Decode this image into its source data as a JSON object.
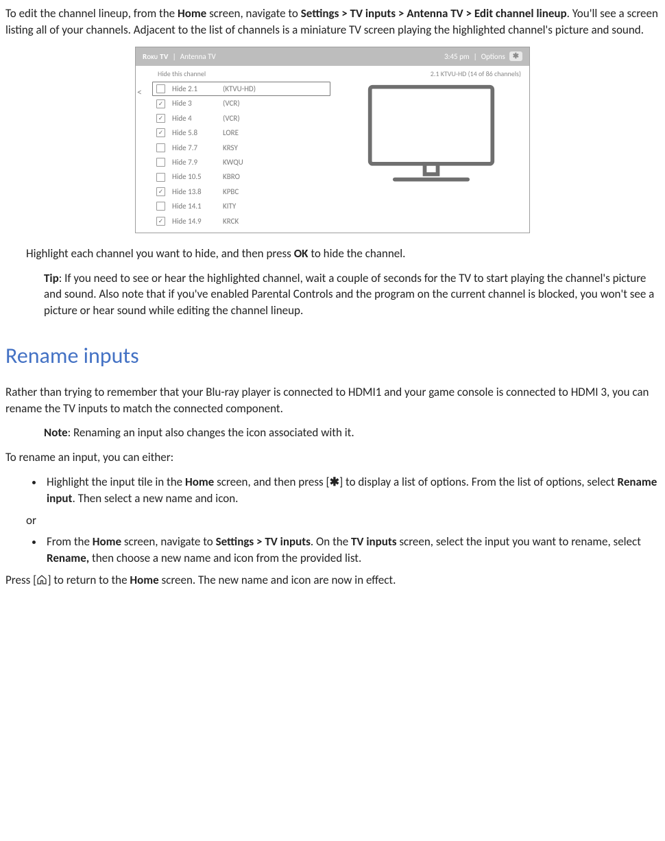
{
  "intro": {
    "pre": "To edit the channel lineup, from the ",
    "home": "Home",
    "mid1": " screen, navigate to ",
    "path": "Settings > TV inputs > Antenna TV > Edit channel lineup",
    "tail": ". You'll see a screen listing all of your channels. Adjacent to the list of channels is a miniature TV screen playing the highlighted channel's picture and sound."
  },
  "mock": {
    "logo": "Roku TV",
    "separator": "|",
    "breadcrumb": "Antenna TV",
    "time": "3:45 pm",
    "options": "Options",
    "star": "✱",
    "sub_left": "Hide this channel",
    "sub_right": "2.1 KTVU-HD (14 of 86 channels)",
    "rows": [
      {
        "checked": false,
        "hide": "Hide 2.1",
        "name": "(KTVU-HD)",
        "selected": true
      },
      {
        "checked": true,
        "hide": "Hide 3",
        "name": "(VCR)"
      },
      {
        "checked": true,
        "hide": "Hide 4",
        "name": "(VCR)"
      },
      {
        "checked": true,
        "hide": "Hide 5.8",
        "name": "LORE"
      },
      {
        "checked": false,
        "hide": "Hide 7.7",
        "name": "KRSY"
      },
      {
        "checked": false,
        "hide": "Hide 7.9",
        "name": "KWQU"
      },
      {
        "checked": false,
        "hide": "Hide 10.5",
        "name": "KBRO"
      },
      {
        "checked": true,
        "hide": "Hide 13.8",
        "name": "KPBC"
      },
      {
        "checked": false,
        "hide": "Hide 14.1",
        "name": "KITY"
      },
      {
        "checked": true,
        "hide": "Hide 14.9",
        "name": "KRCK"
      }
    ]
  },
  "highlight_line": {
    "pre": "Highlight each channel you want to hide, and then press ",
    "ok": "OK",
    "post": " to hide the channel."
  },
  "tip": {
    "label": "Tip",
    "body": ": If you need to see or hear the highlighted channel, wait a couple of seconds for the TV to start playing the channel's picture and sound. Also note that if you've enabled Parental Controls and the program on the current channel is blocked, you won't see a picture or hear sound while editing the channel lineup."
  },
  "rename": {
    "heading": "Rename inputs",
    "p1": "Rather than trying to remember that your Blu-ray player is connected to HDMI1 and your game console is connected to HDMI 3, you can rename the TV inputs to match the connected component.",
    "note_label": "Note",
    "note_body": ": Renaming an input also changes the icon associated with it.",
    "p2": "To rename an input, you can either:",
    "b1_pre": "Highlight the input tile in the ",
    "b1_home": "Home",
    "b1_mid": " screen, and then press [",
    "b1_star": "✱",
    "b1_post1": "] to display a list of options. From the list of options, select ",
    "b1_rename": "Rename input",
    "b1_tail": ". Then select a new name and icon.",
    "or": "or",
    "b2_pre": "From the ",
    "b2_home": "Home",
    "b2_mid1": " screen, navigate to ",
    "b2_path": "Settings > TV inputs",
    "b2_mid2": ". On the ",
    "b2_tvi": "TV inputs",
    "b2_mid3": " screen, select the input you want to rename, select ",
    "b2_rename": "Rename,",
    "b2_tail": " then choose a new name and icon from the provided list.",
    "close_pre": "Press [",
    "close_mid": "] to return to the ",
    "close_home": "Home",
    "close_tail": " screen. The new name and icon are now in effect."
  }
}
